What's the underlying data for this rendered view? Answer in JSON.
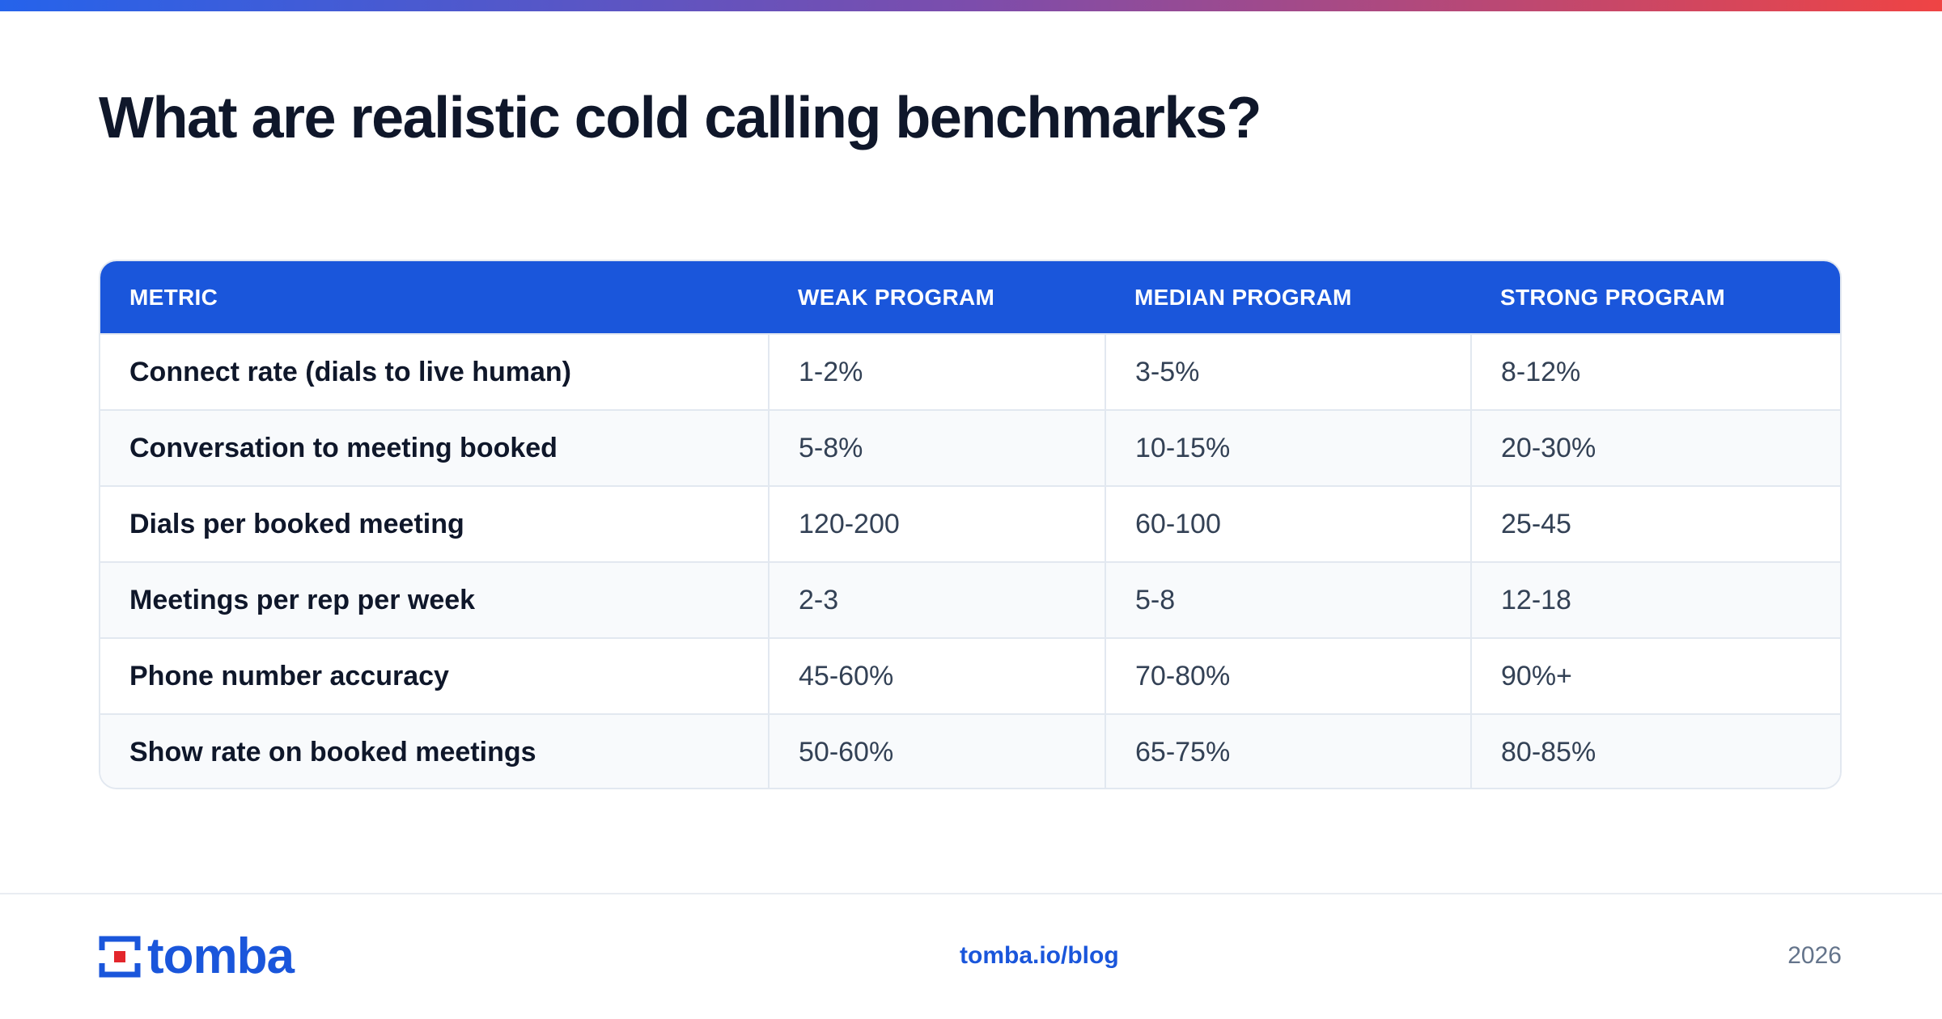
{
  "title": "What are realistic cold calling benchmarks?",
  "colors": {
    "accent": "#1a56db",
    "gradient_start": "#2563eb",
    "gradient_end": "#ef4444",
    "logo_red": "#e3262b",
    "heading": "#0f172a",
    "body_text": "#334155",
    "muted": "#64748b",
    "row_alt": "#f8fafc",
    "border": "#e2e8f0"
  },
  "table": {
    "headers": [
      "METRIC",
      "WEAK PROGRAM",
      "MEDIAN PROGRAM",
      "STRONG PROGRAM"
    ],
    "rows": [
      [
        "Connect rate (dials to live human)",
        "1-2%",
        "3-5%",
        "8-12%"
      ],
      [
        "Conversation to meeting booked",
        "5-8%",
        "10-15%",
        "20-30%"
      ],
      [
        "Dials per booked meeting",
        "120-200",
        "60-100",
        "25-45"
      ],
      [
        "Meetings per rep per week",
        "2-3",
        "5-8",
        "12-18"
      ],
      [
        "Phone number accuracy",
        "45-60%",
        "70-80%",
        "90%+"
      ],
      [
        "Show rate on booked meetings",
        "50-60%",
        "65-75%",
        "80-85%"
      ]
    ]
  },
  "footer": {
    "brand": "tomba",
    "logo_icon": "tomba-logo-icon",
    "link": "tomba.io/blog",
    "year": "2026"
  }
}
